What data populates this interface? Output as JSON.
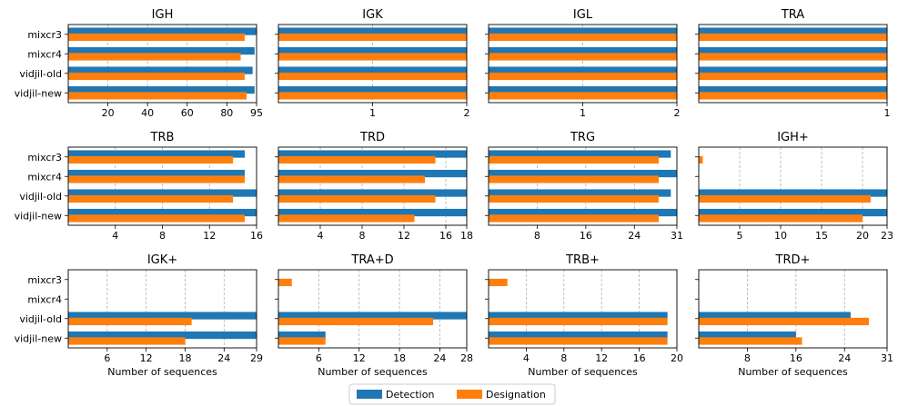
{
  "colors": {
    "detection": "#1f77b4",
    "designation": "#ff7f0e",
    "grid": "#b0b0b0"
  },
  "legend": {
    "placement": "bottom-center",
    "items": [
      "Detection",
      "Designation"
    ]
  },
  "chart_data": [
    {
      "type": "bar",
      "title": "IGH",
      "categories": [
        "mixcr3",
        "mixcr4",
        "vidjil-old",
        "vidjil-new"
      ],
      "series": [
        {
          "name": "Detection",
          "values": [
            95,
            94,
            93,
            94
          ]
        },
        {
          "name": "Designation",
          "values": [
            89,
            87,
            89,
            90
          ]
        }
      ],
      "xlim": [
        0,
        95
      ],
      "xticks": [
        20,
        40,
        60,
        80,
        95
      ],
      "xlabel": "",
      "grid": "x-dashed"
    },
    {
      "type": "bar",
      "title": "IGK",
      "categories": [
        "mixcr3",
        "mixcr4",
        "vidjil-old",
        "vidjil-new"
      ],
      "series": [
        {
          "name": "Detection",
          "values": [
            2,
            2,
            2,
            2
          ]
        },
        {
          "name": "Designation",
          "values": [
            2,
            2,
            2,
            2
          ]
        }
      ],
      "xlim": [
        0,
        2
      ],
      "xticks": [
        1,
        2
      ],
      "xlabel": "",
      "grid": "x-dashed"
    },
    {
      "type": "bar",
      "title": "IGL",
      "categories": [
        "mixcr3",
        "mixcr4",
        "vidjil-old",
        "vidjil-new"
      ],
      "series": [
        {
          "name": "Detection",
          "values": [
            2,
            2,
            2,
            2
          ]
        },
        {
          "name": "Designation",
          "values": [
            2,
            2,
            2,
            2
          ]
        }
      ],
      "xlim": [
        0,
        2
      ],
      "xticks": [
        1,
        2
      ],
      "xlabel": "",
      "grid": "x-dashed"
    },
    {
      "type": "bar",
      "title": "TRA",
      "categories": [
        "mixcr3",
        "mixcr4",
        "vidjil-old",
        "vidjil-new"
      ],
      "series": [
        {
          "name": "Detection",
          "values": [
            1,
            1,
            1,
            1
          ]
        },
        {
          "name": "Designation",
          "values": [
            1,
            1,
            1,
            1
          ]
        }
      ],
      "xlim": [
        0,
        1
      ],
      "xticks": [
        1
      ],
      "xlabel": "",
      "grid": "x-dashed"
    },
    {
      "type": "bar",
      "title": "TRB",
      "categories": [
        "mixcr3",
        "mixcr4",
        "vidjil-old",
        "vidjil-new"
      ],
      "series": [
        {
          "name": "Detection",
          "values": [
            15,
            15,
            16,
            16
          ]
        },
        {
          "name": "Designation",
          "values": [
            14,
            15,
            14,
            15
          ]
        }
      ],
      "xlim": [
        0,
        16
      ],
      "xticks": [
        4,
        8,
        12,
        16
      ],
      "xlabel": "",
      "grid": "x-dashed"
    },
    {
      "type": "bar",
      "title": "TRD",
      "categories": [
        "mixcr3",
        "mixcr4",
        "vidjil-old",
        "vidjil-new"
      ],
      "series": [
        {
          "name": "Detection",
          "values": [
            18,
            18,
            18,
            18
          ]
        },
        {
          "name": "Designation",
          "values": [
            15,
            14,
            15,
            13
          ]
        }
      ],
      "xlim": [
        0,
        18
      ],
      "xticks": [
        4,
        8,
        12,
        16,
        18
      ],
      "xlabel": "",
      "grid": "x-dashed"
    },
    {
      "type": "bar",
      "title": "TRG",
      "categories": [
        "mixcr3",
        "mixcr4",
        "vidjil-old",
        "vidjil-new"
      ],
      "series": [
        {
          "name": "Detection",
          "values": [
            30,
            31,
            30,
            31
          ]
        },
        {
          "name": "Designation",
          "values": [
            28,
            28,
            28,
            28
          ]
        }
      ],
      "xlim": [
        0,
        31
      ],
      "xticks": [
        8,
        16,
        24,
        31
      ],
      "xlabel": "",
      "grid": "x-dashed"
    },
    {
      "type": "bar",
      "title": "IGH+",
      "categories": [
        "mixcr3",
        "mixcr4",
        "vidjil-old",
        "vidjil-new"
      ],
      "series": [
        {
          "name": "Detection",
          "values": [
            0,
            0,
            23,
            23
          ]
        },
        {
          "name": "Designation",
          "values": [
            0.5,
            0,
            21,
            20
          ]
        }
      ],
      "xlim": [
        0,
        23
      ],
      "xticks": [
        5,
        10,
        15,
        20,
        23
      ],
      "xlabel": "",
      "grid": "x-dashed"
    },
    {
      "type": "bar",
      "title": "IGK+",
      "categories": [
        "mixcr3",
        "mixcr4",
        "vidjil-old",
        "vidjil-new"
      ],
      "series": [
        {
          "name": "Detection",
          "values": [
            0,
            0,
            29,
            29
          ]
        },
        {
          "name": "Designation",
          "values": [
            0,
            0,
            19,
            18
          ]
        }
      ],
      "xlim": [
        0,
        29
      ],
      "xticks": [
        6,
        12,
        18,
        24,
        29
      ],
      "xlabel": "Number of sequences",
      "grid": "x-dashed"
    },
    {
      "type": "bar",
      "title": "TRA+D",
      "categories": [
        "mixcr3",
        "mixcr4",
        "vidjil-old",
        "vidjil-new"
      ],
      "series": [
        {
          "name": "Detection",
          "values": [
            0,
            0,
            28,
            7
          ]
        },
        {
          "name": "Designation",
          "values": [
            2,
            0,
            23,
            7
          ]
        }
      ],
      "xlim": [
        0,
        28
      ],
      "xticks": [
        6,
        12,
        18,
        24,
        28
      ],
      "xlabel": "Number of sequences",
      "grid": "x-dashed"
    },
    {
      "type": "bar",
      "title": "TRB+",
      "categories": [
        "mixcr3",
        "mixcr4",
        "vidjil-old",
        "vidjil-new"
      ],
      "series": [
        {
          "name": "Detection",
          "values": [
            0,
            0,
            19,
            19
          ]
        },
        {
          "name": "Designation",
          "values": [
            2,
            0,
            19,
            19
          ]
        }
      ],
      "xlim": [
        0,
        20
      ],
      "xticks": [
        4,
        8,
        12,
        16,
        20
      ],
      "xlabel": "Number of sequences",
      "grid": "x-dashed"
    },
    {
      "type": "bar",
      "title": "TRD+",
      "categories": [
        "mixcr3",
        "mixcr4",
        "vidjil-old",
        "vidjil-new"
      ],
      "series": [
        {
          "name": "Detection",
          "values": [
            0,
            0,
            25,
            16
          ]
        },
        {
          "name": "Designation",
          "values": [
            0,
            0,
            28,
            17
          ]
        }
      ],
      "xlim": [
        0,
        31
      ],
      "xticks": [
        8,
        16,
        24,
        31
      ],
      "xlabel": "Number of sequences",
      "grid": "x-dashed"
    }
  ]
}
